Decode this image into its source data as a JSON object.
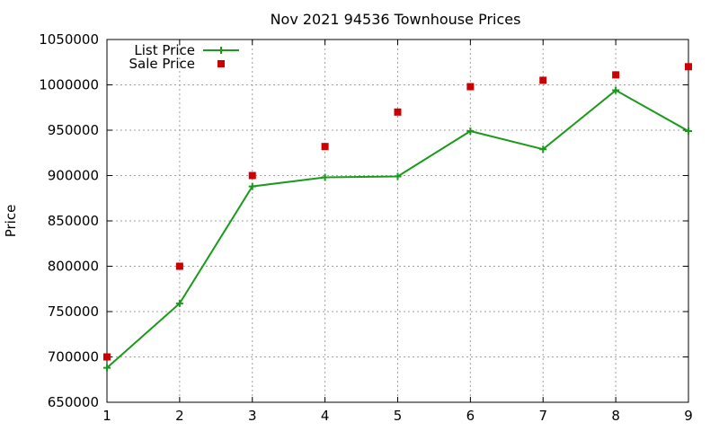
{
  "chart_data": {
    "type": "line",
    "title": "Nov 2021 94536 Townhouse Prices",
    "xlabel": "",
    "ylabel": "Price",
    "x": [
      1,
      2,
      3,
      4,
      5,
      6,
      7,
      8,
      9
    ],
    "xlim": [
      1,
      9
    ],
    "ylim": [
      650000,
      1050000
    ],
    "x_ticks": [
      "1",
      "2",
      "3",
      "4",
      "5",
      "6",
      "7",
      "8",
      "9"
    ],
    "y_ticks": [
      "650000",
      "700000",
      "750000",
      "800000",
      "850000",
      "900000",
      "950000",
      "1000000",
      "1050000"
    ],
    "grid": true,
    "legend_position": "top-left",
    "series": [
      {
        "name": "List Price",
        "style": "line+cross",
        "color": "#1a9a1a",
        "values": [
          688000,
          759000,
          888000,
          898000,
          899000,
          949000,
          929000,
          994000,
          949000
        ]
      },
      {
        "name": "Sale Price",
        "style": "square",
        "color": "#cc0000",
        "values": [
          700000,
          800000,
          900000,
          932000,
          970000,
          998000,
          1005000,
          1011000,
          1020000
        ]
      }
    ]
  }
}
